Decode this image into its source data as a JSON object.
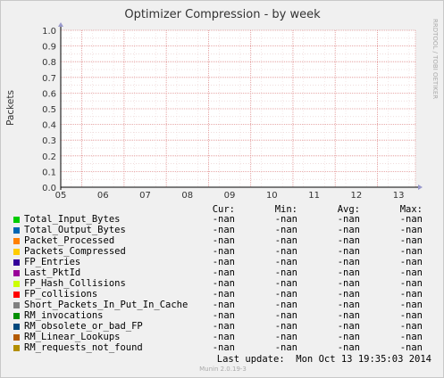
{
  "chart_data": {
    "type": "line",
    "title": "Optimizer Compression - by week",
    "ylabel": "Packets",
    "xlabel": "",
    "ylim": [
      0,
      1
    ],
    "yticks": [
      "0.0",
      "0.1",
      "0.2",
      "0.3",
      "0.4",
      "0.5",
      "0.6",
      "0.7",
      "0.8",
      "0.9",
      "1.0"
    ],
    "xticks": [
      "05",
      "06",
      "07",
      "08",
      "09",
      "10",
      "11",
      "12",
      "13"
    ],
    "grid": true,
    "side_label": "RRDTOOL / TOBI OETIKER",
    "series": [
      {
        "name": "Total_Input_Bytes",
        "color": "#00cc00",
        "cur": "-nan",
        "min": "-nan",
        "avg": "-nan",
        "max": "-nan"
      },
      {
        "name": "Total_Output_Bytes",
        "color": "#0066b3",
        "cur": "-nan",
        "min": "-nan",
        "avg": "-nan",
        "max": "-nan"
      },
      {
        "name": "Packet_Processed",
        "color": "#ff8000",
        "cur": "-nan",
        "min": "-nan",
        "avg": "-nan",
        "max": "-nan"
      },
      {
        "name": "Packets_Compressed",
        "color": "#ffcc00",
        "cur": "-nan",
        "min": "-nan",
        "avg": "-nan",
        "max": "-nan"
      },
      {
        "name": "FP_Entries",
        "color": "#330099",
        "cur": "-nan",
        "min": "-nan",
        "avg": "-nan",
        "max": "-nan"
      },
      {
        "name": "Last_PktId",
        "color": "#990099",
        "cur": "-nan",
        "min": "-nan",
        "avg": "-nan",
        "max": "-nan"
      },
      {
        "name": "FP_Hash_Collisions",
        "color": "#ccff00",
        "cur": "-nan",
        "min": "-nan",
        "avg": "-nan",
        "max": "-nan"
      },
      {
        "name": "FP_collisions",
        "color": "#ff0000",
        "cur": "-nan",
        "min": "-nan",
        "avg": "-nan",
        "max": "-nan"
      },
      {
        "name": "Short_Packets_In_Put_In_Cache",
        "color": "#808080",
        "cur": "-nan",
        "min": "-nan",
        "avg": "-nan",
        "max": "-nan"
      },
      {
        "name": "RM_invocations",
        "color": "#008f00",
        "cur": "-nan",
        "min": "-nan",
        "avg": "-nan",
        "max": "-nan"
      },
      {
        "name": "RM_obsolete_or_bad_FP",
        "color": "#00487d",
        "cur": "-nan",
        "min": "-nan",
        "avg": "-nan",
        "max": "-nan"
      },
      {
        "name": "RM_Linear_Lookups",
        "color": "#b35a00",
        "cur": "-nan",
        "min": "-nan",
        "avg": "-nan",
        "max": "-nan"
      },
      {
        "name": "RM_requests_not_found",
        "color": "#b38f00",
        "cur": "-nan",
        "min": "-nan",
        "avg": "-nan",
        "max": "-nan"
      }
    ]
  },
  "legend_headers": {
    "cur": "Cur:",
    "min": "Min:",
    "avg": "Avg:",
    "max": "Max:"
  },
  "last_update": "Last update:  Mon Oct 13 19:35:03 2014",
  "footer": "Munin 2.0.19-3"
}
